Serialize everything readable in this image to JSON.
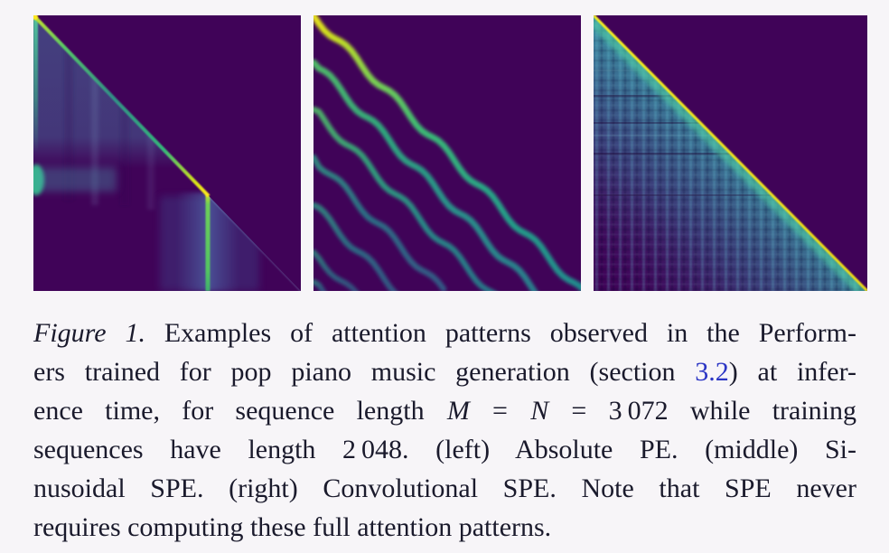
{
  "page": {
    "background_color": "#f7f5f8",
    "text_color": "#1a1a2c"
  },
  "figure": {
    "colormap": "viridis",
    "colors": {
      "panel_background": "#400358",
      "low": "#33638d",
      "mid": "#21918c",
      "high": "#5ec962",
      "max": "#f3e51b"
    },
    "panel_alts": {
      "left": "Attention pattern — Absolute PE",
      "middle": "Attention pattern — Sinusoidal SPE",
      "right": "Attention pattern — Convolutional SPE"
    },
    "middle_stripes": {
      "offsets": [
        0,
        52,
        104,
        157,
        210,
        262,
        295
      ],
      "widths": [
        7,
        7,
        6.5,
        6.5,
        6.5,
        6,
        6
      ],
      "opacities": [
        1,
        0.95,
        0.88,
        0.82,
        0.78,
        0.72,
        0.7
      ],
      "gradients": [
        "gA",
        "gB",
        "gB",
        "gC",
        "gC",
        "gC",
        "gC"
      ],
      "amplitude": 4.5,
      "period": 52,
      "slope": 1.03
    }
  },
  "caption": {
    "label": "Figure 1.",
    "line1_rest": " Examples of attention patterns observed in the Perform-",
    "line2_a": "ers trained for pop piano music generation (section ",
    "line2_link": "3.2",
    "line2_b": ") at infer-",
    "line3_a": "ence time, for sequence length ",
    "line3_var1": "M",
    "line3_eq1": " = ",
    "line3_var2": "N",
    "line3_eq2": " = ",
    "line3_num": "3 072",
    "line3_b": " while training",
    "line4": "sequences have length 2 048.  (left) Absolute PE. (middle) Si-",
    "line5": "nusoidal SPE. (right) Convolutional SPE. Note that SPE never",
    "line6": "requires computing these full attention patterns.",
    "link_color": "#2b35c4"
  }
}
